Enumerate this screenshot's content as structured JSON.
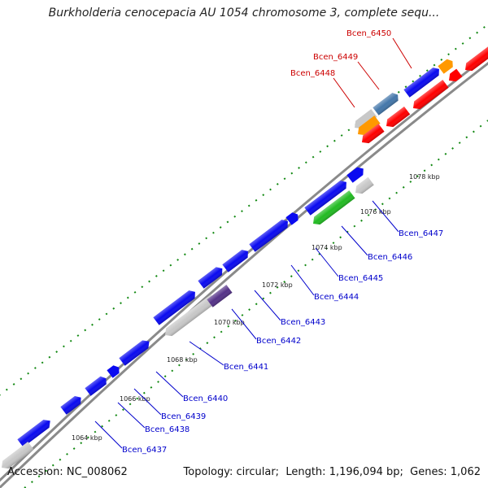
{
  "title": "Burkholderia cenocepacia AU 1054 chromosome 3, complete sequ...",
  "footer": {
    "accession_label": "Accession:",
    "accession": "NC_008062",
    "topology_label": "Topology:",
    "topology": "circular",
    "length_label": "Length:",
    "length": "1,196,094 bp",
    "genes_label": "Genes:",
    "genes": "1,062"
  },
  "colors": {
    "forward_gene": "#0a0af0",
    "reverse_gene": "#ff0000",
    "orange_gene": "#ff9900",
    "grey_gene": "#c8c8c8",
    "green_gene": "#22bb22",
    "steel_gene": "#4477aa",
    "purple_gene": "#553388",
    "tick": "#118811",
    "label_blue": "#0000cc",
    "label_red": "#cc0000"
  },
  "scale": {
    "unit": "kbp",
    "ticks": [
      "1064 kbp",
      "1066 kbp",
      "1068 kbp",
      "1070 kbp",
      "1072 kbp",
      "1074 kbp",
      "1076 kbp",
      "1078 kbp"
    ]
  },
  "gene_labels": [
    {
      "name": "Bcen_6437",
      "color": "blue"
    },
    {
      "name": "Bcen_6438",
      "color": "blue"
    },
    {
      "name": "Bcen_6439",
      "color": "blue"
    },
    {
      "name": "Bcen_6440",
      "color": "blue"
    },
    {
      "name": "Bcen_6441",
      "color": "blue"
    },
    {
      "name": "Bcen_6442",
      "color": "blue"
    },
    {
      "name": "Bcen_6443",
      "color": "blue"
    },
    {
      "name": "Bcen_6444",
      "color": "blue"
    },
    {
      "name": "Bcen_6445",
      "color": "blue"
    },
    {
      "name": "Bcen_6446",
      "color": "blue"
    },
    {
      "name": "Bcen_6447",
      "color": "blue"
    },
    {
      "name": "Bcen_6448",
      "color": "red"
    },
    {
      "name": "Bcen_6449",
      "color": "red"
    },
    {
      "name": "Bcen_6450",
      "color": "red"
    }
  ]
}
